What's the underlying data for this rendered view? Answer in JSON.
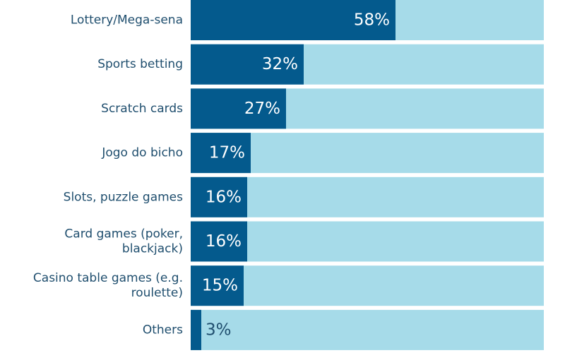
{
  "chart_data": {
    "type": "bar",
    "orientation": "horizontal",
    "categories": [
      [
        "Lottery/Mega-sena"
      ],
      [
        "Sports betting"
      ],
      [
        "Scratch cards"
      ],
      [
        "Jogo do bicho"
      ],
      [
        "Slots, puzzle games"
      ],
      [
        "Card games (poker,",
        "blackjack)"
      ],
      [
        "Casino table games (e.g.",
        "roulette)"
      ],
      [
        "Others"
      ]
    ],
    "values": [
      58,
      32,
      27,
      17,
      16,
      16,
      15,
      3
    ],
    "value_labels": [
      "58%",
      "32%",
      "27%",
      "17%",
      "16%",
      "16%",
      "15%",
      "3%"
    ],
    "xlim": [
      0,
      100
    ],
    "grid": false,
    "legend": "none"
  },
  "colors": {
    "bar": "#045a8d",
    "track": "#a6dbe9",
    "label_text": "#1f4e6e",
    "value_text": "#ffffff"
  }
}
